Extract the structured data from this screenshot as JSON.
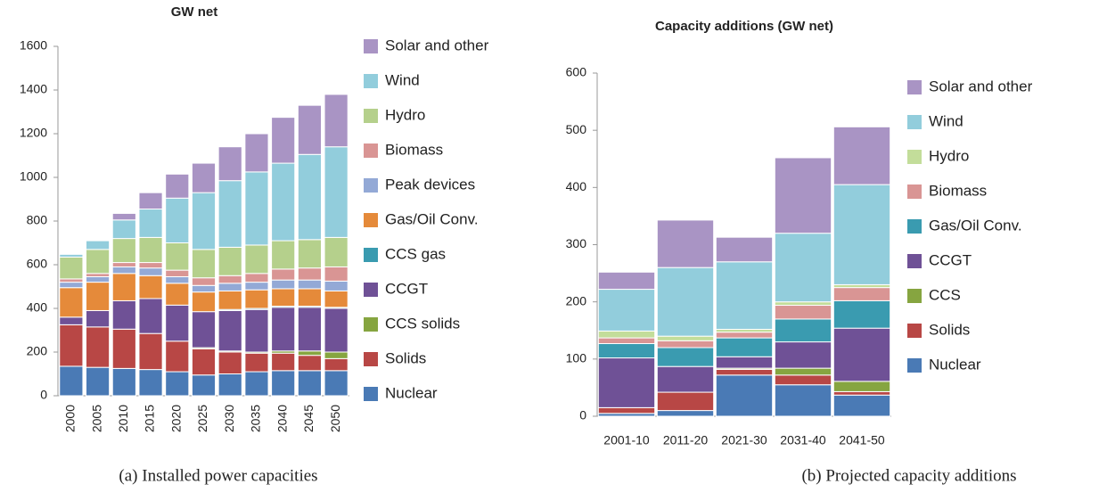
{
  "chart_data": [
    {
      "type": "bar",
      "stacked": true,
      "title": "GW net",
      "caption": "(a) Installed power capacities",
      "categories": [
        "2000",
        "2005",
        "2010",
        "2015",
        "2020",
        "2025",
        "2030",
        "2035",
        "2040",
        "2045",
        "2050"
      ],
      "ylim": [
        0,
        1600
      ],
      "yticks": [
        0,
        200,
        400,
        600,
        800,
        1000,
        1200,
        1400,
        1600
      ],
      "series": [
        {
          "name": "Nuclear",
          "color": "#4a7ab5",
          "values": [
            135,
            130,
            125,
            120,
            110,
            95,
            100,
            110,
            115,
            115,
            115
          ]
        },
        {
          "name": "Solids",
          "color": "#b84745",
          "values": [
            190,
            185,
            180,
            165,
            140,
            120,
            100,
            85,
            80,
            70,
            55
          ]
        },
        {
          "name": "CCS solids",
          "color": "#86a540",
          "values": [
            0,
            0,
            0,
            0,
            0,
            5,
            5,
            5,
            10,
            20,
            30
          ]
        },
        {
          "name": "CCGT",
          "color": "#6f5196",
          "values": [
            35,
            75,
            130,
            160,
            165,
            165,
            185,
            195,
            200,
            200,
            200
          ]
        },
        {
          "name": "CCS gas",
          "color": "#3a9bb0",
          "values": [
            0,
            0,
            0,
            0,
            0,
            0,
            5,
            5,
            5,
            5,
            5
          ]
        },
        {
          "name": "Gas/Oil Conv.",
          "color": "#e58a3a",
          "values": [
            135,
            130,
            125,
            105,
            100,
            90,
            85,
            85,
            80,
            80,
            75
          ]
        },
        {
          "name": "Peak devices",
          "color": "#93a9d6",
          "values": [
            25,
            25,
            30,
            35,
            30,
            30,
            35,
            35,
            40,
            40,
            45
          ]
        },
        {
          "name": "Biomass",
          "color": "#d99594",
          "values": [
            15,
            15,
            20,
            25,
            30,
            35,
            35,
            40,
            50,
            55,
            65
          ]
        },
        {
          "name": "Hydro",
          "color": "#b5d08c",
          "values": [
            100,
            110,
            110,
            115,
            125,
            130,
            130,
            130,
            130,
            130,
            135
          ]
        },
        {
          "name": "Wind",
          "color": "#92cddc",
          "values": [
            13,
            40,
            85,
            130,
            205,
            260,
            305,
            335,
            355,
            390,
            415
          ]
        },
        {
          "name": "Solar and other",
          "color": "#a994c4",
          "values": [
            2,
            3,
            30,
            75,
            110,
            135,
            155,
            175,
            210,
            225,
            240
          ]
        }
      ]
    },
    {
      "type": "bar",
      "stacked": true,
      "title": "Capacity additions (GW net)",
      "caption": "(b) Projected capacity additions",
      "categories": [
        "2001-10",
        "2011-20",
        "2021-30",
        "2031-40",
        "2041-50"
      ],
      "ylim": [
        0,
        600
      ],
      "yticks": [
        0,
        100,
        200,
        300,
        400,
        500,
        600
      ],
      "series": [
        {
          "name": "Nuclear",
          "color": "#4a7ab5",
          "values": [
            5,
            10,
            72,
            55,
            37
          ]
        },
        {
          "name": "Solids",
          "color": "#b84745",
          "values": [
            10,
            32,
            10,
            17,
            6
          ]
        },
        {
          "name": "CCS",
          "color": "#86a540",
          "values": [
            0,
            0,
            2,
            12,
            18
          ]
        },
        {
          "name": "CCGT",
          "color": "#6f5196",
          "values": [
            87,
            45,
            20,
            46,
            93
          ]
        },
        {
          "name": "Gas/Oil Conv.",
          "color": "#3a9bb0",
          "values": [
            25,
            33,
            33,
            40,
            48
          ]
        },
        {
          "name": "Biomass",
          "color": "#d99594",
          "values": [
            10,
            12,
            10,
            24,
            23
          ]
        },
        {
          "name": "Hydro",
          "color": "#c3dd9a",
          "values": [
            12,
            8,
            5,
            6,
            5
          ]
        },
        {
          "name": "Wind",
          "color": "#92cddc",
          "values": [
            73,
            120,
            118,
            120,
            175
          ]
        },
        {
          "name": "Solar and other",
          "color": "#a994c4",
          "values": [
            30,
            83,
            43,
            132,
            101
          ]
        }
      ]
    }
  ]
}
